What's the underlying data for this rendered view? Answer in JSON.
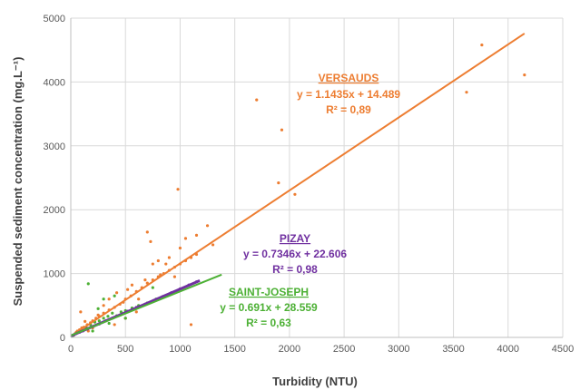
{
  "chart_data": {
    "type": "scatter",
    "xlabel": "Turbidity (NTU)",
    "ylabel": "Suspended sediment concentration (mg.L⁻¹)",
    "xlim": [
      0,
      4500
    ],
    "ylim": [
      0,
      5000
    ],
    "xticks": [
      "0",
      "500",
      "1000",
      "1500",
      "2000",
      "2500",
      "3000",
      "3500",
      "4000",
      "4500"
    ],
    "yticks": [
      "0",
      "1000",
      "2000",
      "3000",
      "4000",
      "5000"
    ],
    "grid": true,
    "legend": "none",
    "series": [
      {
        "name": "VERSAUDS",
        "color": "#ED7D31",
        "equation": "y = 1.1435x + 14.489",
        "r2": "R² = 0,89",
        "slope": 1.1435,
        "intercept": 14.489,
        "fit_range": [
          0,
          4150
        ],
        "points": [
          [
            20,
            30
          ],
          [
            40,
            60
          ],
          [
            60,
            100
          ],
          [
            80,
            120
          ],
          [
            100,
            150
          ],
          [
            120,
            160
          ],
          [
            150,
            200
          ],
          [
            180,
            230
          ],
          [
            200,
            260
          ],
          [
            230,
            300
          ],
          [
            260,
            330
          ],
          [
            300,
            380
          ],
          [
            350,
            430
          ],
          [
            400,
            470
          ],
          [
            450,
            520
          ],
          [
            500,
            600
          ],
          [
            550,
            650
          ],
          [
            600,
            720
          ],
          [
            650,
            780
          ],
          [
            700,
            850
          ],
          [
            750,
            900
          ],
          [
            800,
            950
          ],
          [
            850,
            1000
          ],
          [
            900,
            1050
          ],
          [
            950,
            1100
          ],
          [
            1000,
            1150
          ],
          [
            1050,
            1200
          ],
          [
            1100,
            1250
          ],
          [
            1150,
            1300
          ],
          [
            700,
            1650
          ],
          [
            730,
            1500
          ],
          [
            800,
            1200
          ],
          [
            900,
            1250
          ],
          [
            1000,
            1400
          ],
          [
            1050,
            1550
          ],
          [
            1150,
            1600
          ],
          [
            1250,
            1750
          ],
          [
            1100,
            200
          ],
          [
            1300,
            1450
          ],
          [
            980,
            2320
          ],
          [
            1700,
            3720
          ],
          [
            1900,
            2420
          ],
          [
            1930,
            3250
          ],
          [
            2050,
            2240
          ],
          [
            3620,
            3840
          ],
          [
            3760,
            4580
          ],
          [
            4150,
            4110
          ],
          [
            50,
            80
          ],
          [
            30,
            40
          ],
          [
            90,
            400
          ],
          [
            130,
            250
          ],
          [
            160,
            100
          ],
          [
            250,
            350
          ],
          [
            300,
            500
          ],
          [
            350,
            600
          ],
          [
            420,
            700
          ],
          [
            480,
            550
          ],
          [
            520,
            750
          ],
          [
            560,
            820
          ],
          [
            620,
            600
          ],
          [
            680,
            900
          ],
          [
            750,
            1150
          ],
          [
            820,
            980
          ],
          [
            870,
            1150
          ],
          [
            950,
            950
          ],
          [
            500,
            300
          ],
          [
            450,
            350
          ],
          [
            400,
            200
          ],
          [
            600,
            400
          ],
          [
            200,
            150
          ]
        ]
      },
      {
        "name": "PIZAY",
        "color": "#7030A0",
        "equation": "y = 0.7346x + 22.606",
        "r2": "R² = 0,98",
        "slope": 0.7346,
        "intercept": 22.606,
        "fit_range": [
          0,
          1180
        ],
        "points": [
          [
            10,
            20
          ],
          [
            30,
            40
          ],
          [
            50,
            60
          ],
          [
            80,
            80
          ],
          [
            110,
            100
          ],
          [
            150,
            130
          ],
          [
            200,
            170
          ],
          [
            260,
            210
          ],
          [
            320,
            260
          ],
          [
            380,
            300
          ],
          [
            450,
            350
          ],
          [
            520,
            410
          ],
          [
            600,
            470
          ],
          [
            680,
            520
          ],
          [
            760,
            580
          ],
          [
            840,
            640
          ],
          [
            920,
            700
          ],
          [
            1000,
            760
          ],
          [
            1080,
            820
          ],
          [
            1150,
            870
          ]
        ]
      },
      {
        "name": "SAINT-JOSEPH",
        "color": "#4CB034",
        "equation": "y = 0.691x + 28.559",
        "r2": "R² = 0,63",
        "slope": 0.691,
        "intercept": 28.559,
        "fit_range": [
          0,
          1380
        ],
        "points": [
          [
            20,
            30
          ],
          [
            60,
            80
          ],
          [
            100,
            120
          ],
          [
            140,
            160
          ],
          [
            160,
            840
          ],
          [
            180,
            200
          ],
          [
            220,
            240
          ],
          [
            260,
            260
          ],
          [
            300,
            300
          ],
          [
            340,
            330
          ],
          [
            380,
            380
          ],
          [
            420,
            340
          ],
          [
            460,
            400
          ],
          [
            500,
            420
          ],
          [
            560,
            460
          ],
          [
            620,
            500
          ],
          [
            700,
            540
          ],
          [
            780,
            600
          ],
          [
            860,
            640
          ],
          [
            400,
            650
          ],
          [
            750,
            780
          ],
          [
            300,
            600
          ],
          [
            250,
            450
          ],
          [
            500,
            300
          ],
          [
            350,
            220
          ],
          [
            200,
            100
          ]
        ]
      }
    ]
  },
  "annotations": {
    "versauds": {
      "name": "VERSAUDS",
      "equation": "y = 1.1435x + 14.489",
      "r2": "R² = 0,89"
    },
    "pizay": {
      "name": "PIZAY",
      "equation": "y = 0.7346x + 22.606",
      "r2": "R² = 0,98"
    },
    "saint_joseph": {
      "name": "SAINT-JOSEPH",
      "equation": "y = 0.691x + 28.559",
      "r2": "R² = 0,63"
    }
  }
}
